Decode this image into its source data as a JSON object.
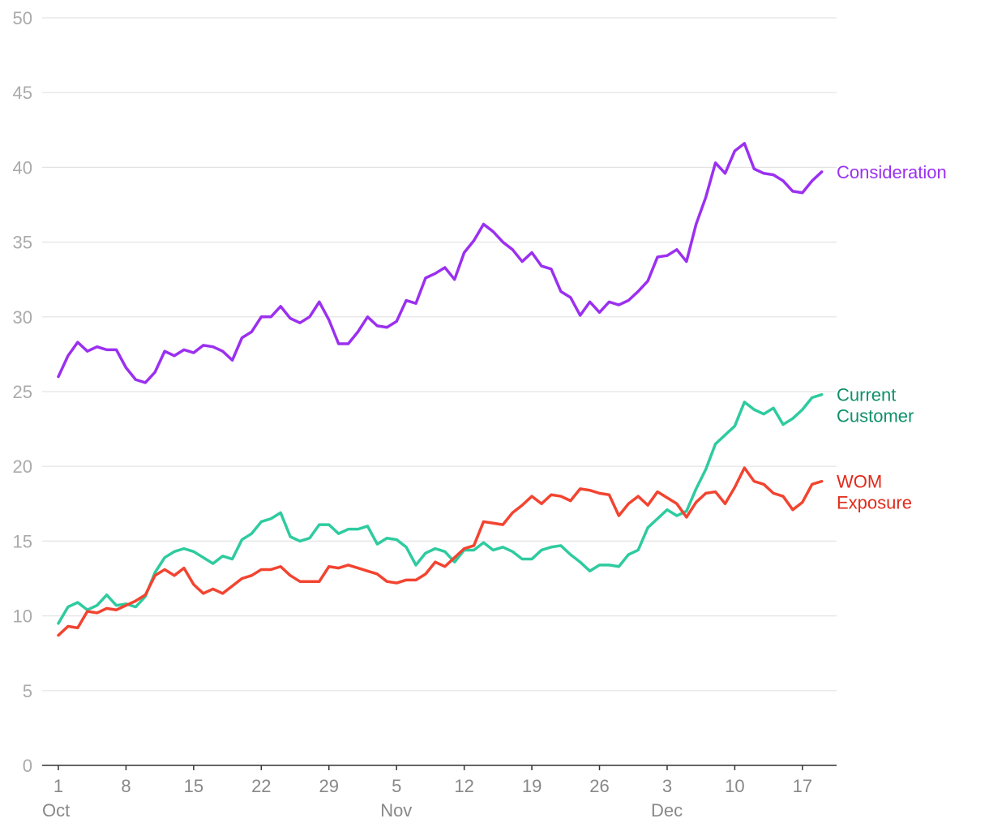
{
  "chart_data": {
    "type": "line",
    "title": "",
    "xlabel": "",
    "ylabel": "",
    "ylim": [
      0,
      50
    ],
    "yticks": [
      0,
      5,
      10,
      15,
      20,
      25,
      30,
      35,
      40,
      45,
      50
    ],
    "grid": true,
    "legend": "inline-right",
    "x_start": "Oct 1",
    "x_end": "Dec 19",
    "x_ticks": [
      {
        "label": "1",
        "month": "Oct",
        "day": 0
      },
      {
        "label": "8",
        "month": "",
        "day": 7
      },
      {
        "label": "15",
        "month": "",
        "day": 14
      },
      {
        "label": "22",
        "month": "",
        "day": 21
      },
      {
        "label": "29",
        "month": "",
        "day": 28
      },
      {
        "label": "5",
        "month": "Nov",
        "day": 35
      },
      {
        "label": "12",
        "month": "",
        "day": 42
      },
      {
        "label": "19",
        "month": "",
        "day": 49
      },
      {
        "label": "26",
        "month": "",
        "day": 56
      },
      {
        "label": "3",
        "month": "Dec",
        "day": 63
      },
      {
        "label": "10",
        "month": "",
        "day": 70
      },
      {
        "label": "17",
        "month": "",
        "day": 77
      }
    ],
    "series": [
      {
        "name": "Consideration",
        "label_lines": [
          "Consideration"
        ],
        "color": "#9b30f0",
        "label_color": "#9b30f0",
        "values": [
          26.0,
          27.4,
          28.3,
          27.7,
          28.0,
          27.8,
          27.8,
          26.6,
          25.8,
          25.6,
          26.3,
          27.7,
          27.4,
          27.8,
          27.6,
          28.1,
          28.0,
          27.7,
          27.1,
          28.6,
          29.0,
          30.0,
          30.0,
          30.7,
          29.9,
          29.6,
          30.0,
          31.0,
          29.8,
          28.2,
          28.2,
          29.0,
          30.0,
          29.4,
          29.3,
          29.7,
          31.1,
          30.9,
          32.6,
          32.9,
          33.3,
          32.5,
          34.3,
          35.1,
          36.2,
          35.7,
          35.0,
          34.5,
          33.7,
          34.3,
          33.4,
          33.2,
          31.7,
          31.3,
          30.1,
          31.0,
          30.3,
          31.0,
          30.8,
          31.1,
          31.7,
          32.4,
          34.0,
          34.1,
          34.5,
          33.7,
          36.2,
          38.0,
          40.3,
          39.6,
          41.1,
          41.6,
          39.9,
          39.6,
          39.5,
          39.1,
          38.4,
          38.3,
          39.1,
          39.7
        ]
      },
      {
        "name": "Current Customer",
        "label_lines": [
          "Current",
          "Customer"
        ],
        "color": "#2ecb9f",
        "label_color": "#10906a",
        "values": [
          9.5,
          10.6,
          10.9,
          10.4,
          10.7,
          11.4,
          10.7,
          10.8,
          10.6,
          11.3,
          12.9,
          13.9,
          14.3,
          14.5,
          14.3,
          13.9,
          13.5,
          14.0,
          13.8,
          15.1,
          15.5,
          16.3,
          16.5,
          16.9,
          15.3,
          15.0,
          15.2,
          16.1,
          16.1,
          15.5,
          15.8,
          15.8,
          16.0,
          14.8,
          15.2,
          15.1,
          14.6,
          13.4,
          14.2,
          14.5,
          14.3,
          13.6,
          14.4,
          14.4,
          14.9,
          14.4,
          14.6,
          14.3,
          13.8,
          13.8,
          14.4,
          14.6,
          14.7,
          14.1,
          13.6,
          13.0,
          13.4,
          13.4,
          13.3,
          14.1,
          14.4,
          15.9,
          16.5,
          17.1,
          16.7,
          17.0,
          18.5,
          19.8,
          21.5,
          22.1,
          22.7,
          24.3,
          23.8,
          23.5,
          23.9,
          22.8,
          23.2,
          23.8,
          24.6,
          24.8
        ]
      },
      {
        "name": "WOM Exposure",
        "label_lines": [
          "WOM",
          "Exposure"
        ],
        "color": "#f24430",
        "label_color": "#e02a1a",
        "values": [
          8.7,
          9.3,
          9.2,
          10.3,
          10.2,
          10.5,
          10.4,
          10.7,
          11.0,
          11.4,
          12.7,
          13.1,
          12.7,
          13.2,
          12.1,
          11.5,
          11.8,
          11.5,
          12.0,
          12.5,
          12.7,
          13.1,
          13.1,
          13.3,
          12.7,
          12.3,
          12.3,
          12.3,
          13.3,
          13.2,
          13.4,
          13.2,
          13.0,
          12.8,
          12.3,
          12.2,
          12.4,
          12.4,
          12.8,
          13.6,
          13.3,
          13.9,
          14.5,
          14.7,
          16.3,
          16.2,
          16.1,
          16.9,
          17.4,
          18.0,
          17.5,
          18.1,
          18.0,
          17.7,
          18.5,
          18.4,
          18.2,
          18.1,
          16.7,
          17.5,
          18.0,
          17.4,
          18.3,
          17.9,
          17.5,
          16.6,
          17.6,
          18.2,
          18.3,
          17.5,
          18.6,
          19.9,
          19.0,
          18.8,
          18.2,
          18.0,
          17.1,
          17.6,
          18.8,
          19.0
        ]
      }
    ]
  }
}
